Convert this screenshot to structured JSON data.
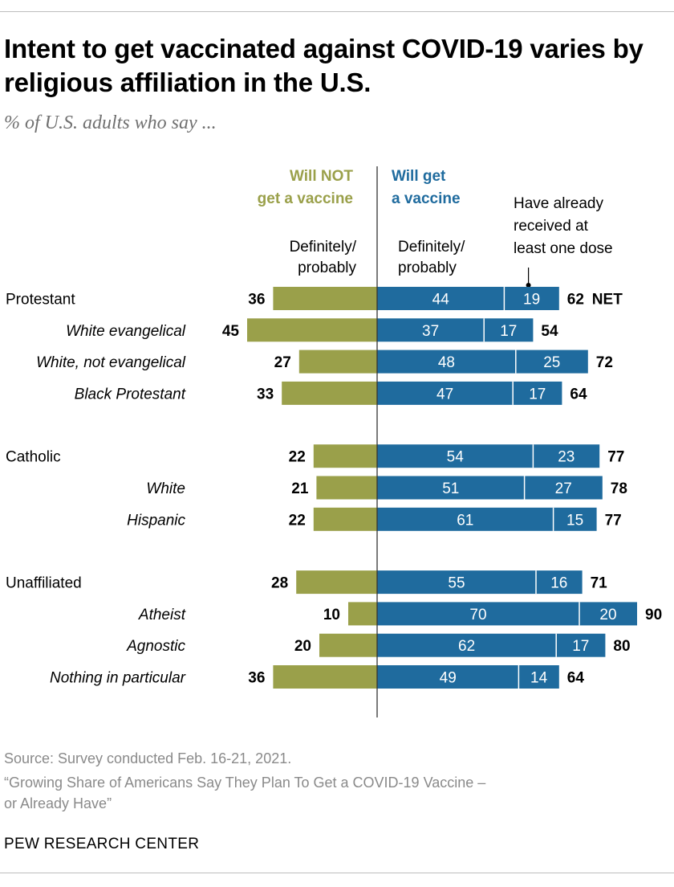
{
  "title": "Intent to get vaccinated against COVID-19 varies by religious affiliation in the U.S.",
  "subtitle": "% of U.S. adults who say ...",
  "colors": {
    "will_not": "#9aa04a",
    "will_get": "#1f6b9e",
    "axis": "#333333",
    "dot_leader": "#000000"
  },
  "chart_data": {
    "type": "bar",
    "orientation": "horizontal",
    "layout": "diverging-stacked",
    "legend": {
      "will_not_header": [
        "Will NOT",
        "get a vaccine"
      ],
      "will_get_header": [
        "Will get",
        "a vaccine"
      ],
      "will_not_sub": [
        "Definitely/",
        "probably"
      ],
      "will_get_sub": [
        "Definitely/",
        "probably"
      ],
      "received_header": [
        "Have already",
        "received at",
        "least one dose"
      ]
    },
    "net_label": "NET",
    "categories": [
      {
        "label": "Protestant",
        "italic": false,
        "group": 0,
        "will_not": 36,
        "will_get": 44,
        "received": 19,
        "net": 62,
        "show_net_label": true
      },
      {
        "label": "White evangelical",
        "italic": true,
        "group": 0,
        "will_not": 45,
        "will_get": 37,
        "received": 17,
        "net": 54
      },
      {
        "label": "White, not evangelical",
        "italic": true,
        "group": 0,
        "will_not": 27,
        "will_get": 48,
        "received": 25,
        "net": 72
      },
      {
        "label": "Black Protestant",
        "italic": true,
        "group": 0,
        "will_not": 33,
        "will_get": 47,
        "received": 17,
        "net": 64
      },
      {
        "label": "Catholic",
        "italic": false,
        "group": 1,
        "will_not": 22,
        "will_get": 54,
        "received": 23,
        "net": 77
      },
      {
        "label": "White",
        "italic": true,
        "group": 1,
        "will_not": 21,
        "will_get": 51,
        "received": 27,
        "net": 78
      },
      {
        "label": "Hispanic",
        "italic": true,
        "group": 1,
        "will_not": 22,
        "will_get": 61,
        "received": 15,
        "net": 77
      },
      {
        "label": "Unaffiliated",
        "italic": false,
        "group": 2,
        "will_not": 28,
        "will_get": 55,
        "received": 16,
        "net": 71
      },
      {
        "label": "Atheist",
        "italic": true,
        "group": 2,
        "will_not": 10,
        "will_get": 70,
        "received": 20,
        "net": 90
      },
      {
        "label": "Agnostic",
        "italic": true,
        "group": 2,
        "will_not": 20,
        "will_get": 62,
        "received": 17,
        "net": 80
      },
      {
        "label": "Nothing in particular",
        "italic": true,
        "group": 2,
        "will_not": 36,
        "will_get": 49,
        "received": 14,
        "net": 64
      }
    ]
  },
  "notes": {
    "source": "Source: Survey conducted Feb. 16-21, 2021.",
    "report_line1": "“Growing Share of Americans Say They Plan To Get a COVID-19 Vaccine –",
    "report_line2": "or Already Have”"
  },
  "credit": "PEW RESEARCH CENTER"
}
